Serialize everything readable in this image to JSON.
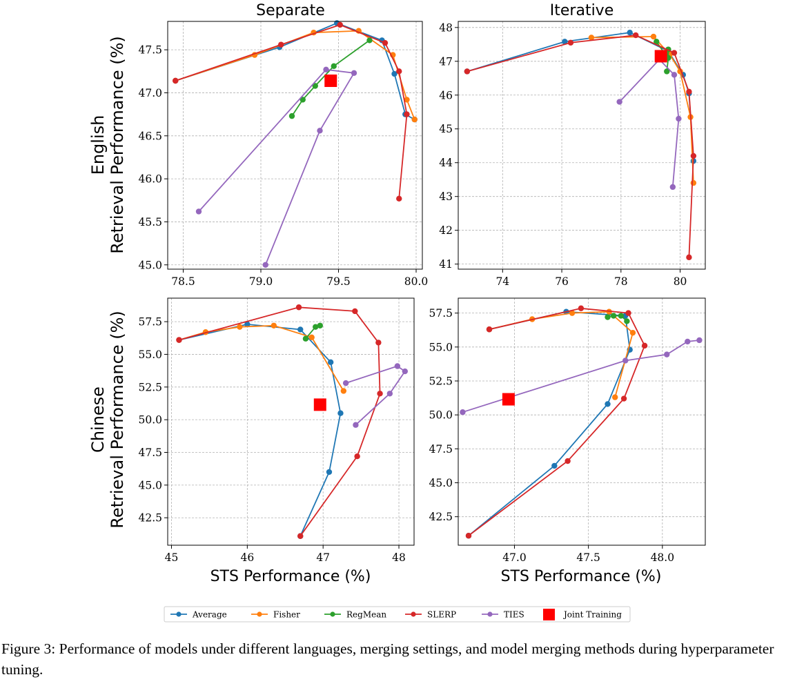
{
  "caption": "Figure 3: Performance of models under different languages, merging settings, and model merging methods during hyperparameter tuning.",
  "colors": {
    "Average": "#1f77b4",
    "Fisher": "#ff7f0e",
    "RegMean": "#2ca02c",
    "SLERP": "#d62728",
    "TIES": "#9467bd",
    "Joint Training": "#ff0000"
  },
  "legend": [
    "Average",
    "Fisher",
    "RegMean",
    "SLERP",
    "TIES",
    "Joint Training"
  ],
  "columns": [
    "Separate",
    "Iterative"
  ],
  "rows": [
    {
      "line1": "English",
      "line2": "Retrieval Performance (%)"
    },
    {
      "line1": "Chinese",
      "line2": "Retrieval Performance (%)"
    }
  ],
  "chart_data": [
    {
      "type": "line",
      "title": "Separate",
      "xlabel": "",
      "ylabel": "Retrieval Performance (%)",
      "xlim": [
        78.4,
        80.04
      ],
      "ylim": [
        44.95,
        47.83
      ],
      "xticks": [
        "78.5",
        "79.0",
        "79.5",
        "80.0"
      ],
      "yticks": [
        "45.0",
        "45.5",
        "46.0",
        "46.5",
        "47.0",
        "47.5"
      ],
      "grid": true,
      "series": [
        {
          "name": "Average",
          "points": [
            [
              78.45,
              47.14
            ],
            [
              79.12,
              47.53
            ],
            [
              79.49,
              47.81
            ],
            [
              79.78,
              47.61
            ],
            [
              79.86,
              47.22
            ],
            [
              79.93,
              46.75
            ],
            [
              79.99,
              46.69
            ]
          ]
        },
        {
          "name": "Fisher",
          "points": [
            [
              78.45,
              47.14
            ],
            [
              78.96,
              47.44
            ],
            [
              79.34,
              47.7
            ],
            [
              79.63,
              47.72
            ],
            [
              79.85,
              47.44
            ],
            [
              79.94,
              46.92
            ],
            [
              79.99,
              46.69
            ]
          ]
        },
        {
          "name": "RegMean",
          "points": [
            [
              79.2,
              46.73
            ],
            [
              79.27,
              46.92
            ],
            [
              79.35,
              47.08
            ],
            [
              79.47,
              47.31
            ],
            [
              79.7,
              47.61
            ]
          ]
        },
        {
          "name": "SLERP",
          "points": [
            [
              78.45,
              47.14
            ],
            [
              79.13,
              47.56
            ],
            [
              79.51,
              47.79
            ],
            [
              79.8,
              47.58
            ],
            [
              79.89,
              47.25
            ],
            [
              79.94,
              46.75
            ],
            [
              79.89,
              45.77
            ]
          ]
        },
        {
          "name": "TIES",
          "points": [
            [
              78.6,
              45.62
            ],
            [
              79.42,
              47.27
            ],
            [
              79.6,
              47.23
            ],
            [
              79.38,
              46.56
            ],
            [
              79.03,
              45.0
            ]
          ]
        }
      ],
      "joint_training": [
        79.45,
        47.14
      ]
    },
    {
      "type": "line",
      "title": "Iterative",
      "xlabel": "",
      "ylabel": "",
      "xlim": [
        72.5,
        80.85
      ],
      "ylim": [
        40.85,
        48.18
      ],
      "xticks": [
        "74",
        "76",
        "78",
        "80"
      ],
      "yticks": [
        "41",
        "42",
        "43",
        "44",
        "45",
        "46",
        "47",
        "48"
      ],
      "grid": true,
      "series": [
        {
          "name": "Average",
          "points": [
            [
              72.8,
              46.7
            ],
            [
              76.1,
              47.58
            ],
            [
              78.3,
              47.85
            ],
            [
              79.6,
              47.3
            ],
            [
              80.1,
              46.6
            ],
            [
              80.3,
              46.05
            ],
            [
              80.45,
              44.05
            ]
          ]
        },
        {
          "name": "Fisher",
          "points": [
            [
              77.0,
              47.7
            ],
            [
              79.1,
              47.73
            ],
            [
              79.65,
              47.2
            ],
            [
              80.0,
              46.7
            ],
            [
              80.35,
              45.35
            ],
            [
              80.45,
              43.4
            ]
          ]
        },
        {
          "name": "RegMean",
          "points": [
            [
              79.2,
              47.58
            ],
            [
              79.5,
              47.2
            ],
            [
              79.6,
              47.35
            ],
            [
              79.6,
              47.1
            ],
            [
              79.55,
              46.7
            ]
          ]
        },
        {
          "name": "SLERP",
          "points": [
            [
              72.8,
              46.7
            ],
            [
              76.3,
              47.55
            ],
            [
              78.5,
              47.77
            ],
            [
              79.8,
              47.25
            ],
            [
              80.3,
              46.1
            ],
            [
              80.45,
              44.2
            ],
            [
              80.3,
              41.2
            ]
          ]
        },
        {
          "name": "TIES",
          "points": [
            [
              77.95,
              45.8
            ],
            [
              79.3,
              47.05
            ],
            [
              79.8,
              46.6
            ],
            [
              79.95,
              45.3
            ],
            [
              79.75,
              43.28
            ]
          ]
        }
      ],
      "joint_training": [
        79.35,
        47.15
      ]
    },
    {
      "type": "line",
      "title": "",
      "xlabel": "STS Performance (%)",
      "ylabel": "Retrieval Performance (%)",
      "xlim": [
        44.95,
        48.2
      ],
      "ylim": [
        40.4,
        59.3
      ],
      "xticks": [
        "45",
        "46",
        "47",
        "48"
      ],
      "yticks": [
        "42.5",
        "45.0",
        "47.5",
        "50.0",
        "52.5",
        "55.0",
        "57.5"
      ],
      "grid": true,
      "series": [
        {
          "name": "Average",
          "points": [
            [
              45.1,
              56.1
            ],
            [
              46.0,
              57.3
            ],
            [
              46.7,
              56.9
            ],
            [
              47.1,
              54.4
            ],
            [
              47.23,
              50.5
            ],
            [
              47.08,
              46.0
            ],
            [
              46.7,
              41.1
            ]
          ]
        },
        {
          "name": "Fisher",
          "points": [
            [
              45.1,
              56.1
            ],
            [
              45.45,
              56.7
            ],
            [
              45.9,
              57.1
            ],
            [
              46.35,
              57.2
            ],
            [
              46.85,
              56.3
            ],
            [
              47.27,
              52.2
            ]
          ]
        },
        {
          "name": "RegMean",
          "points": [
            [
              46.77,
              56.2
            ],
            [
              46.9,
              57.1
            ],
            [
              46.96,
              57.2
            ]
          ]
        },
        {
          "name": "SLERP",
          "points": [
            [
              45.1,
              56.1
            ],
            [
              46.68,
              58.6
            ],
            [
              47.42,
              58.3
            ],
            [
              47.73,
              55.9
            ],
            [
              47.75,
              52.0
            ],
            [
              47.45,
              47.2
            ],
            [
              46.7,
              41.1
            ]
          ]
        },
        {
          "name": "TIES",
          "points": [
            [
              47.3,
              52.8
            ],
            [
              47.98,
              54.1
            ],
            [
              48.08,
              53.7
            ],
            [
              47.88,
              52.0
            ],
            [
              47.43,
              49.6
            ]
          ]
        }
      ],
      "joint_training": [
        46.96,
        51.15
      ]
    },
    {
      "type": "line",
      "title": "",
      "xlabel": "STS Performance (%)",
      "ylabel": "",
      "xlim": [
        46.62,
        48.29
      ],
      "ylim": [
        40.4,
        58.6
      ],
      "xticks": [
        "47.0",
        "47.5",
        "48.0"
      ],
      "yticks": [
        "42.5",
        "45.0",
        "47.5",
        "50.0",
        "52.5",
        "55.0",
        "57.5"
      ],
      "grid": true,
      "series": [
        {
          "name": "Average",
          "points": [
            [
              46.69,
              41.1
            ],
            [
              47.27,
              46.25
            ],
            [
              47.63,
              50.8
            ],
            [
              47.78,
              54.8
            ],
            [
              47.75,
              57.3
            ],
            [
              47.35,
              57.6
            ],
            [
              46.83,
              56.3
            ]
          ]
        },
        {
          "name": "Fisher",
          "points": [
            [
              46.83,
              56.3
            ],
            [
              47.12,
              57.05
            ],
            [
              47.39,
              57.5
            ],
            [
              47.64,
              57.6
            ],
            [
              47.8,
              56.05
            ],
            [
              47.68,
              51.3
            ]
          ]
        },
        {
          "name": "RegMean",
          "points": [
            [
              47.63,
              57.2
            ],
            [
              47.67,
              57.3
            ],
            [
              47.72,
              57.3
            ],
            [
              47.76,
              56.9
            ]
          ]
        },
        {
          "name": "SLERP",
          "points": [
            [
              46.83,
              56.3
            ],
            [
              47.45,
              57.85
            ],
            [
              47.77,
              57.5
            ],
            [
              47.88,
              55.1
            ],
            [
              47.74,
              51.2
            ],
            [
              47.36,
              46.6
            ],
            [
              46.69,
              41.1
            ]
          ]
        },
        {
          "name": "TIES",
          "points": [
            [
              46.65,
              50.2
            ],
            [
              47.75,
              54.0
            ],
            [
              48.03,
              54.45
            ],
            [
              48.17,
              55.4
            ],
            [
              48.25,
              55.5
            ]
          ]
        }
      ],
      "joint_training": [
        46.96,
        51.15
      ]
    }
  ]
}
